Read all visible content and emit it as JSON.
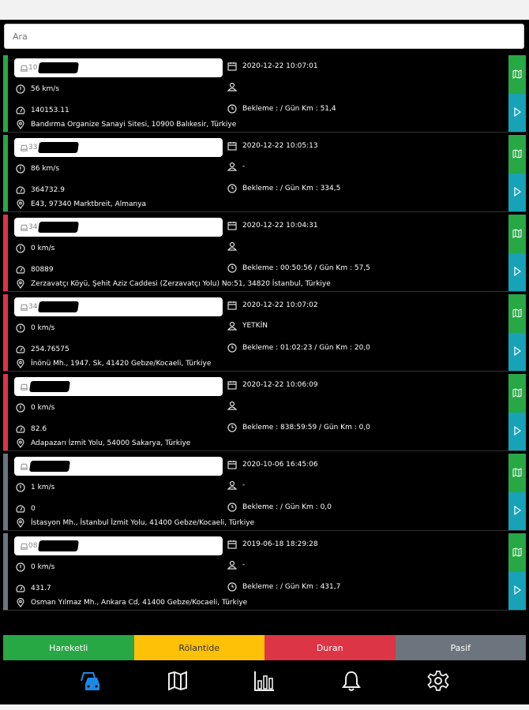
{
  "search": {
    "placeholder": "Ara"
  },
  "colors": {
    "moving": "#28a745",
    "idle": "#ffc107",
    "stopped": "#dc3545",
    "passive": "#6c757d",
    "map_button": "#28a745",
    "play_button": "#17a2b8",
    "nav_active": "#1e88e5"
  },
  "vehicles": [
    {
      "status": "moving",
      "plate": "10",
      "datetime": "2020-12-22 10:07:01",
      "speed": "56 km/s",
      "driver": "",
      "odometer": "140153.11",
      "idle_info": "Bekleme : / Gün Km : 51,4",
      "address": "Bandırma Organize Sanayi Sitesi, 10900 Balıkesir, Türkiye"
    },
    {
      "status": "moving",
      "plate": "33",
      "datetime": "2020-12-22 10:05:13",
      "speed": "86 km/s",
      "driver": "-",
      "odometer": "364732.9",
      "idle_info": "Bekleme : / Gün Km : 334,5",
      "address": "E43, 97340 Marktbreit, Almanya"
    },
    {
      "status": "stopped",
      "plate": "34",
      "datetime": "2020-12-22 10:04:31",
      "speed": "0 km/s",
      "driver": "",
      "odometer": "80889",
      "idle_info": "Bekleme : 00:50:56 / Gün Km : 57,5",
      "address": "Zerzavatçı Köyü, Şehit Aziz Caddesi (Zerzavatçı Yolu) No:51, 34820 İstanbul, Türkiye"
    },
    {
      "status": "stopped",
      "plate": "34",
      "datetime": "2020-12-22 10:07:02",
      "speed": "0 km/s",
      "driver": "YETKİN",
      "odometer": "254.76575",
      "idle_info": "Bekleme : 01:02:23 / Gün Km : 20,0",
      "address": "İnönü Mh., 1947. Sk, 41420 Gebze/Kocaeli, Türkiye"
    },
    {
      "status": "stopped",
      "plate": "",
      "datetime": "2020-12-22 10:06:09",
      "speed": "0 km/s",
      "driver": "",
      "odometer": "82.6",
      "idle_info": "Bekleme : 838:59:59 / Gün Km : 0,0",
      "address": "Adapazarı İzmit Yolu, 54000 Sakarya, Türkiye"
    },
    {
      "status": "passive",
      "plate": "",
      "datetime": "2020-10-06 16:45:06",
      "speed": "1 km/s",
      "driver": "-",
      "odometer": "0",
      "idle_info": "Bekleme : / Gün Km : 0,0",
      "address": "İstasyon Mh., İstanbul İzmit Yolu, 41400 Gebze/Kocaeli, Türkiye"
    },
    {
      "status": "passive",
      "plate": "08",
      "datetime": "2019-06-18 18:29:28",
      "speed": "0 km/s",
      "driver": "-",
      "odometer": "431.7",
      "idle_info": "Bekleme : / Gün Km : 431,7",
      "address": "Osman Yılmaz Mh., Ankara Cd, 41400 Gebze/Kocaeli, Türkiye"
    }
  ],
  "status_filters": [
    {
      "key": "moving",
      "label": "Hareketli"
    },
    {
      "key": "idle",
      "label": "Rölantide"
    },
    {
      "key": "stopped",
      "label": "Duran"
    },
    {
      "key": "passive",
      "label": "Pasif"
    }
  ],
  "nav": [
    {
      "icon": "vehicles-icon",
      "active": true
    },
    {
      "icon": "map-icon",
      "active": false
    },
    {
      "icon": "chart-icon",
      "active": false
    },
    {
      "icon": "bell-icon",
      "active": false
    },
    {
      "icon": "gear-icon",
      "active": false
    }
  ]
}
